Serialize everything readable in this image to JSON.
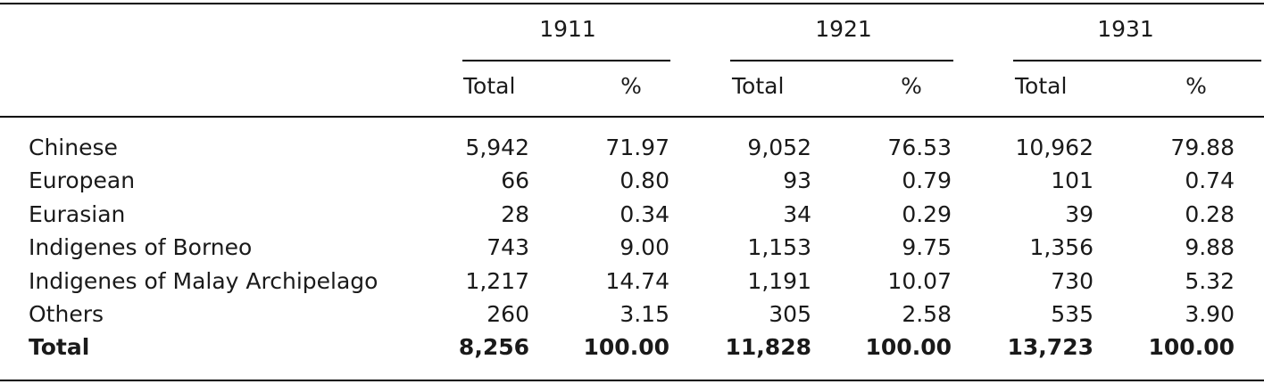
{
  "table": {
    "years": [
      "1911",
      "1921",
      "1931"
    ],
    "subheaders": [
      "Total",
      "%",
      "Total",
      "%",
      "Total",
      "%"
    ],
    "rows": [
      [
        "Chinese",
        "5,942",
        "71.97",
        "9,052",
        "76.53",
        "10,962",
        "79.88"
      ],
      [
        "European",
        "66",
        "0.80",
        "93",
        "0.79",
        "101",
        "0.74"
      ],
      [
        "Eurasian",
        "28",
        "0.34",
        "34",
        "0.29",
        "39",
        "0.28"
      ],
      [
        "Indigenes of Borneo",
        "743",
        "9.00",
        "1,153",
        "9.75",
        "1,356",
        "9.88"
      ],
      [
        "Indigenes of Malay Archipelago",
        "1,217",
        "14.74",
        "1,191",
        "10.07",
        "730",
        "5.32"
      ],
      [
        "Others",
        "260",
        "3.15",
        "305",
        "2.58",
        "535",
        "3.90"
      ]
    ],
    "total": [
      "Total",
      "8,256",
      "100.00",
      "11,828",
      "100.00",
      "13,723",
      "100.00"
    ]
  }
}
